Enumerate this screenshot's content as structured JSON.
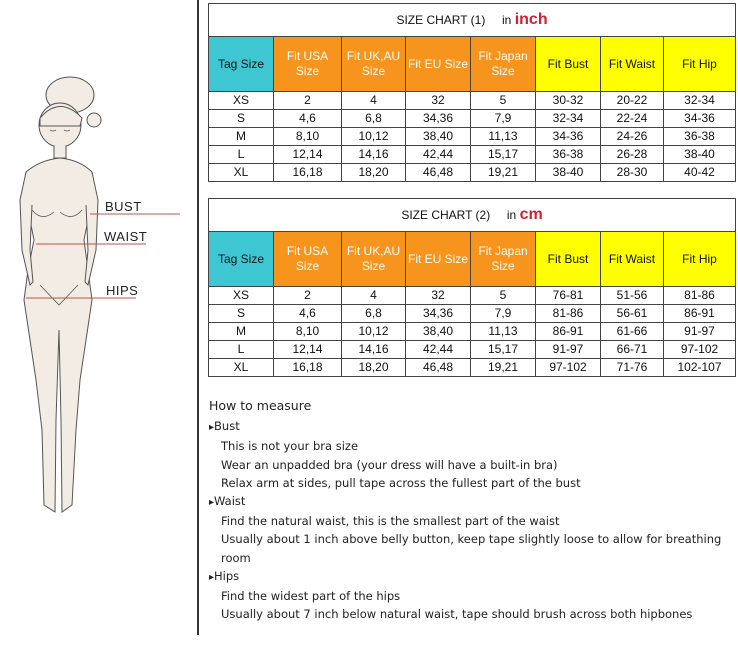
{
  "figure": {
    "labels": {
      "bust": "BUST",
      "waist": "WAIST",
      "hips": "HIPS"
    }
  },
  "colors": {
    "tag_header": "#3ec7d2",
    "size_header": "#f7941d",
    "measure_header": "#ffff00",
    "unit": "#d3202f"
  },
  "headers": [
    "Tag Size",
    "Fit USA Size",
    "Fit UK,AU Size",
    "Fit EU Size",
    "Fit Japan Size",
    "Fit Bust",
    "Fit Waist",
    "Fit Hip"
  ],
  "chart1": {
    "title": "SIZE CHART (1)",
    "unit_prefix": "in",
    "unit": "inch",
    "rows": [
      [
        "XS",
        "2",
        "4",
        "32",
        "5",
        "30-32",
        "20-22",
        "32-34"
      ],
      [
        "S",
        "4,6",
        "6,8",
        "34,36",
        "7,9",
        "32-34",
        "22-24",
        "34-36"
      ],
      [
        "M",
        "8,10",
        "10,12",
        "38,40",
        "11,13",
        "34-36",
        "24-26",
        "36-38"
      ],
      [
        "L",
        "12,14",
        "14,16",
        "42,44",
        "15,17",
        "36-38",
        "26-28",
        "38-40"
      ],
      [
        "XL",
        "16,18",
        "18,20",
        "46,48",
        "19,21",
        "38-40",
        "28-30",
        "40-42"
      ]
    ]
  },
  "chart2": {
    "title": "SIZE CHART (2)",
    "unit_prefix": "in",
    "unit": "cm",
    "rows": [
      [
        "XS",
        "2",
        "4",
        "32",
        "5",
        "76-81",
        "51-56",
        "81-86"
      ],
      [
        "S",
        "4,6",
        "6,8",
        "34,36",
        "7,9",
        "81-86",
        "56-61",
        "86-91"
      ],
      [
        "M",
        "8,10",
        "10,12",
        "38,40",
        "11,13",
        "86-91",
        "61-66",
        "91-97"
      ],
      [
        "L",
        "12,14",
        "14,16",
        "42,44",
        "15,17",
        "91-97",
        "66-71",
        "97-102"
      ],
      [
        "XL",
        "16,18",
        "18,20",
        "46,48",
        "19,21",
        "97-102",
        "71-76",
        "102-107"
      ]
    ]
  },
  "how_to": {
    "title": "How to measure",
    "sections": [
      {
        "name": "Bust",
        "lines": [
          "This is not your bra size",
          "Wear an unpadded bra (your dress will have a built-in bra)",
          "Relax arm at sides, pull tape across the fullest part of the bust"
        ]
      },
      {
        "name": "Waist",
        "lines": [
          "Find the natural waist, this is the smallest part of the waist",
          "Usually about 1 inch above belly button, keep tape slightly loose to allow for breathing room"
        ]
      },
      {
        "name": "Hips",
        "lines": [
          "Find the widest part of the hips",
          "Usually about 7 inch below natural waist, tape should brush across both hipbones"
        ]
      }
    ]
  }
}
